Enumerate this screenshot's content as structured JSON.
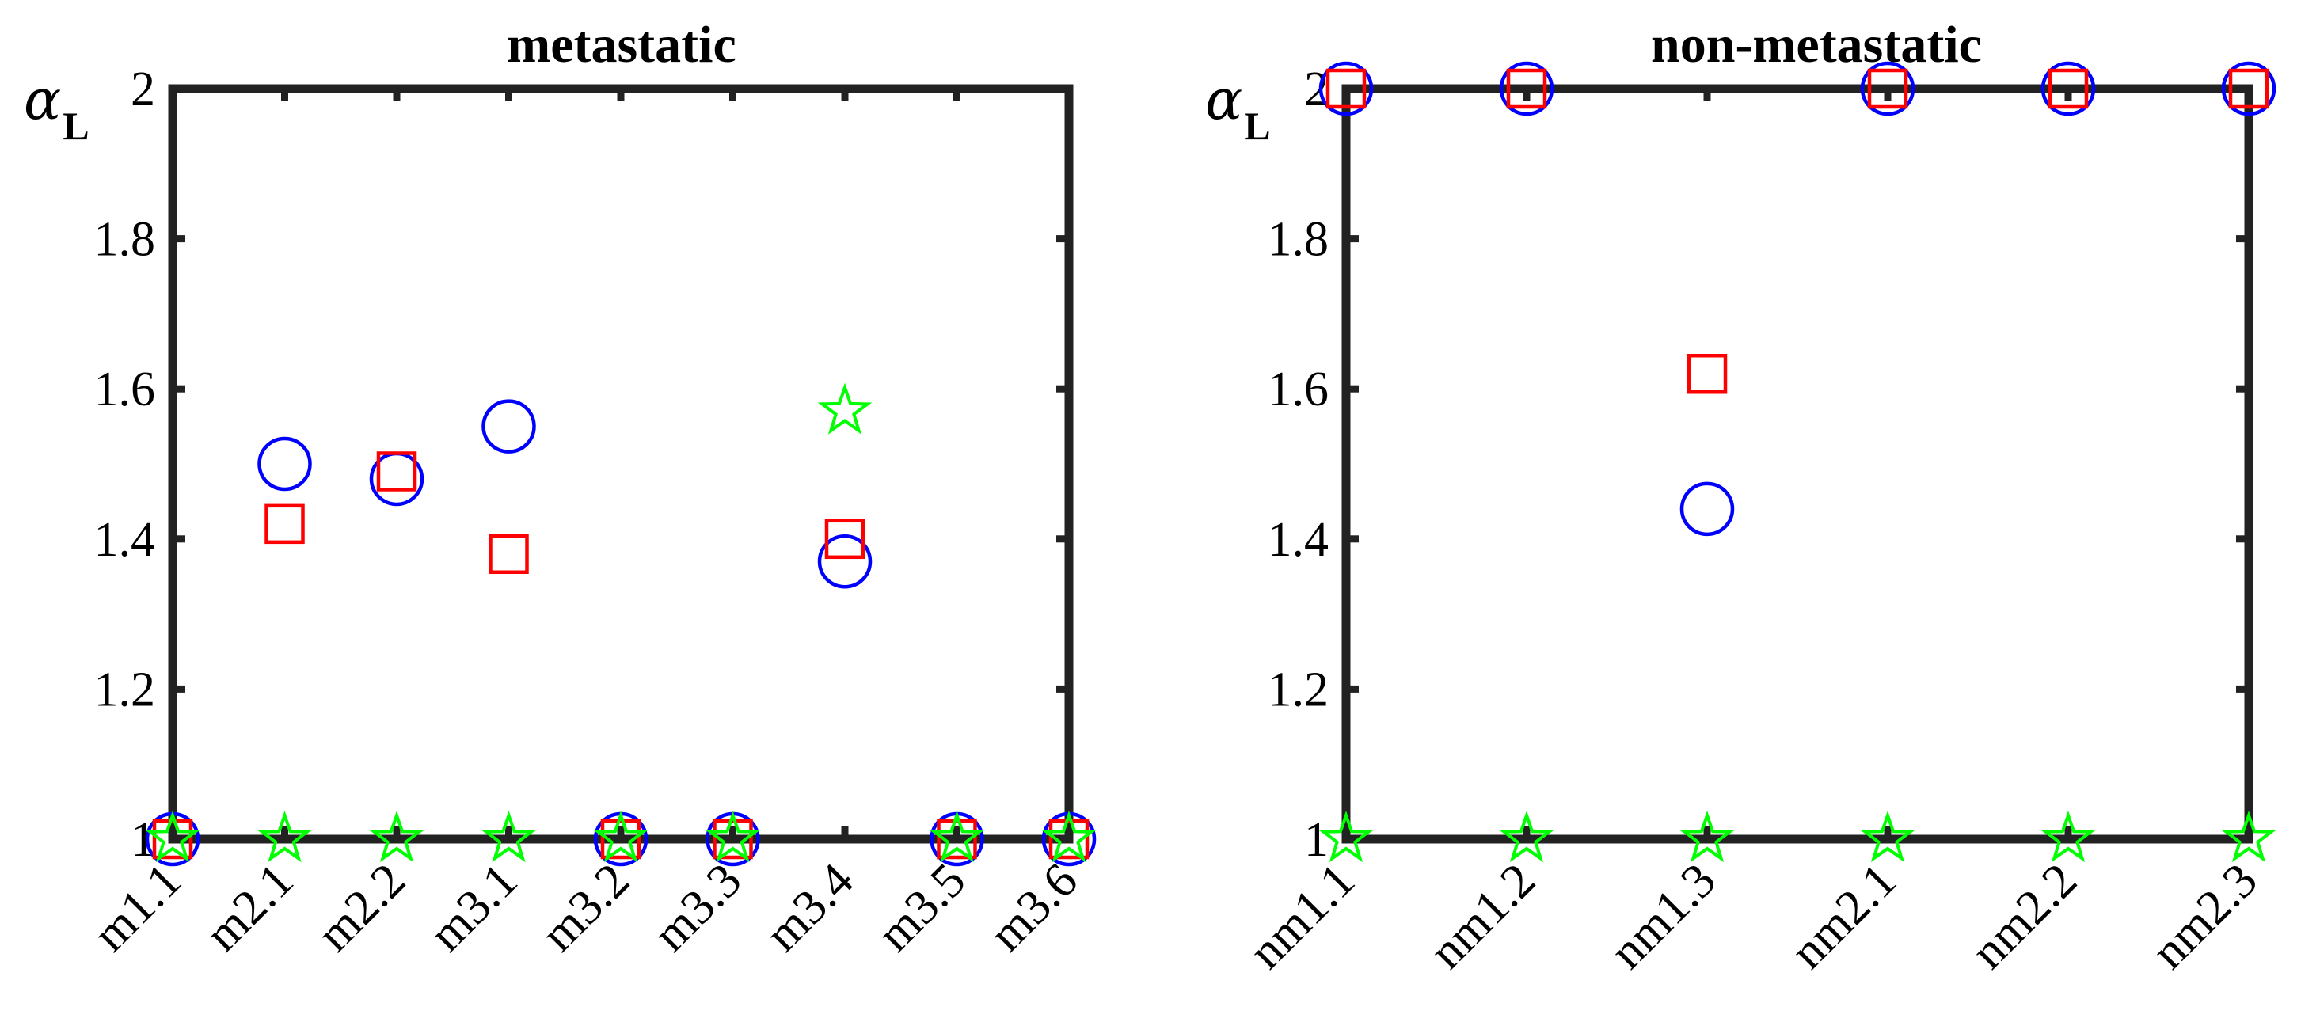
{
  "colors": {
    "circle": "#0000ff",
    "square": "#ff0000",
    "star": "#00ff00",
    "axes": "#222222"
  },
  "chart_data": [
    {
      "type": "scatter",
      "title": "metastatic",
      "ylabel": "α",
      "ylabel_sub": "L",
      "ylim": [
        1,
        2
      ],
      "yticks": [
        1,
        1.2,
        1.4,
        1.6,
        1.8,
        2
      ],
      "ytick_labels": [
        "1",
        "1.2",
        "1.4",
        "1.6",
        "1.8",
        "2"
      ],
      "categories": [
        "m1.1",
        "m2.1",
        "m2.2",
        "m3.1",
        "m3.2",
        "m3.3",
        "m3.4",
        "m3.5",
        "m3.6"
      ],
      "grid": false,
      "series": [
        {
          "marker": "circle",
          "color": "#0000ff",
          "values": [
            1,
            1.5,
            1.48,
            1.55,
            1,
            1,
            1.37,
            1,
            1
          ]
        },
        {
          "marker": "square",
          "color": "#ff0000",
          "values": [
            1,
            1.42,
            1.49,
            1.38,
            1,
            1,
            1.4,
            1,
            1
          ]
        },
        {
          "marker": "star",
          "color": "#00ff00",
          "values": [
            1,
            1,
            1,
            1,
            1,
            1,
            1.57,
            1,
            1
          ]
        }
      ]
    },
    {
      "type": "scatter",
      "title": "non-metastatic",
      "ylabel": "α",
      "ylabel_sub": "L",
      "ylim": [
        1,
        2
      ],
      "yticks": [
        1,
        1.2,
        1.4,
        1.6,
        1.8,
        2
      ],
      "ytick_labels": [
        "1",
        "1.2",
        "1.4",
        "1.6",
        "1.8",
        "2"
      ],
      "categories": [
        "nm1.1",
        "nm1.2",
        "nm1.3",
        "nm2.1",
        "nm2.2",
        "nm2.3"
      ],
      "grid": false,
      "series": [
        {
          "marker": "circle",
          "color": "#0000ff",
          "values": [
            2,
            2,
            1.44,
            2,
            2,
            2
          ]
        },
        {
          "marker": "square",
          "color": "#ff0000",
          "values": [
            2,
            2,
            1.62,
            2,
            2,
            2
          ]
        },
        {
          "marker": "star",
          "color": "#00ff00",
          "values": [
            1,
            1,
            1,
            1,
            1,
            1
          ]
        }
      ]
    }
  ]
}
